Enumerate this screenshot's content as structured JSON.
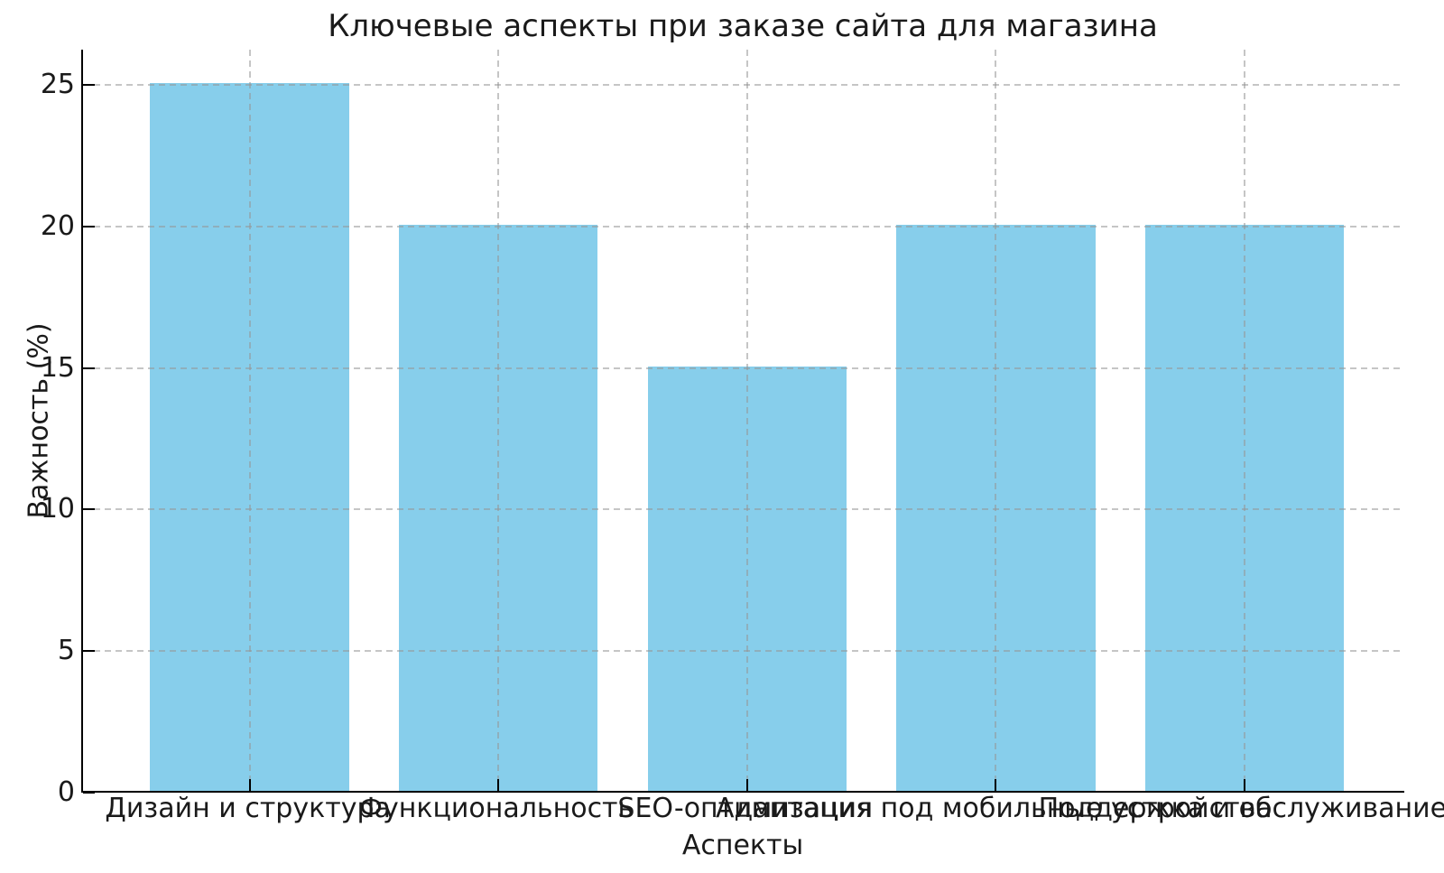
{
  "chart_data": {
    "type": "bar",
    "title": "Ключевые аспекты при заказе сайта для магазина",
    "xlabel": "Аспекты",
    "ylabel": "Важность (%)",
    "categories": [
      "Дизайн и структура",
      "Функциональность",
      "SEO-оптимизация",
      "Адаптация под мобильные устройства",
      "Поддержка и обслуживание"
    ],
    "values": [
      25,
      20,
      15,
      20,
      20
    ],
    "yticks": [
      0,
      5,
      10,
      15,
      20,
      25
    ],
    "ylim": [
      0,
      26.25
    ],
    "bar_color": "#87CEEB",
    "grid": "on",
    "grid_color": "rgba(150,150,150,0.55)",
    "grid_style": "dashed",
    "text_color": "#1a1a1a",
    "spine_color": "#000000",
    "legend": "none"
  }
}
